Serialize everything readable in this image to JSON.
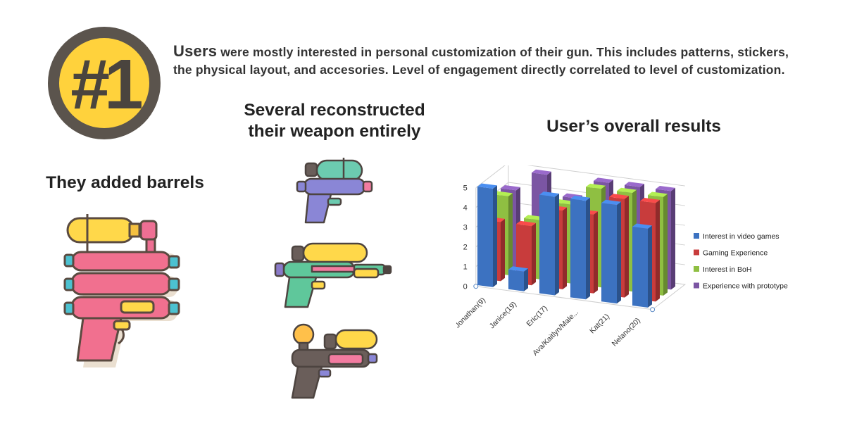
{
  "badge": {
    "text": "#1",
    "ring_color": "#5b544d",
    "fill_color": "#ffd23c"
  },
  "intro": {
    "lead": "Users",
    "rest": " were mostly interested in personal customization of their gun. This includes patterns, stickers, the physical layout, and accesories. Level of engagement directly correlated to level of customization."
  },
  "headings": {
    "barrels": "They added barrels",
    "reconstructed_line1": "Several reconstructed",
    "reconstructed_line2": "their weapon entirely",
    "results": "User’s overall results"
  },
  "icons": {
    "big_gun": "water-gun-icon",
    "small_guns": [
      "water-gun-icon",
      "water-gun-icon",
      "water-gun-icon"
    ]
  },
  "chart_data": {
    "type": "bar",
    "title": "",
    "xlabel": "",
    "ylabel": "",
    "ylim": [
      0,
      5
    ],
    "yticks": [
      0,
      1,
      2,
      3,
      4,
      5
    ],
    "grid": true,
    "legend": "right",
    "categories": [
      "Jonathan(9)",
      "Janice(19)",
      "Eric(17)",
      "Ava/Kaitlyn/Male...",
      "Kat(21)",
      "Nelano(20)"
    ],
    "series": [
      {
        "name": "Interest in video games",
        "color": "#3c72c1",
        "values": [
          5,
          1,
          5,
          5,
          5,
          4
        ]
      },
      {
        "name": "Gaming Experience",
        "color": "#c83c3c",
        "values": [
          3,
          3,
          4,
          4,
          5,
          5
        ]
      },
      {
        "name": "Interest in BoH",
        "color": "#8fbf42",
        "values": [
          4,
          3,
          4,
          5,
          5,
          5
        ]
      },
      {
        "name": "Experience with prototype",
        "color": "#7b55a3",
        "values": [
          4,
          5,
          4,
          5,
          5,
          5
        ]
      }
    ]
  }
}
